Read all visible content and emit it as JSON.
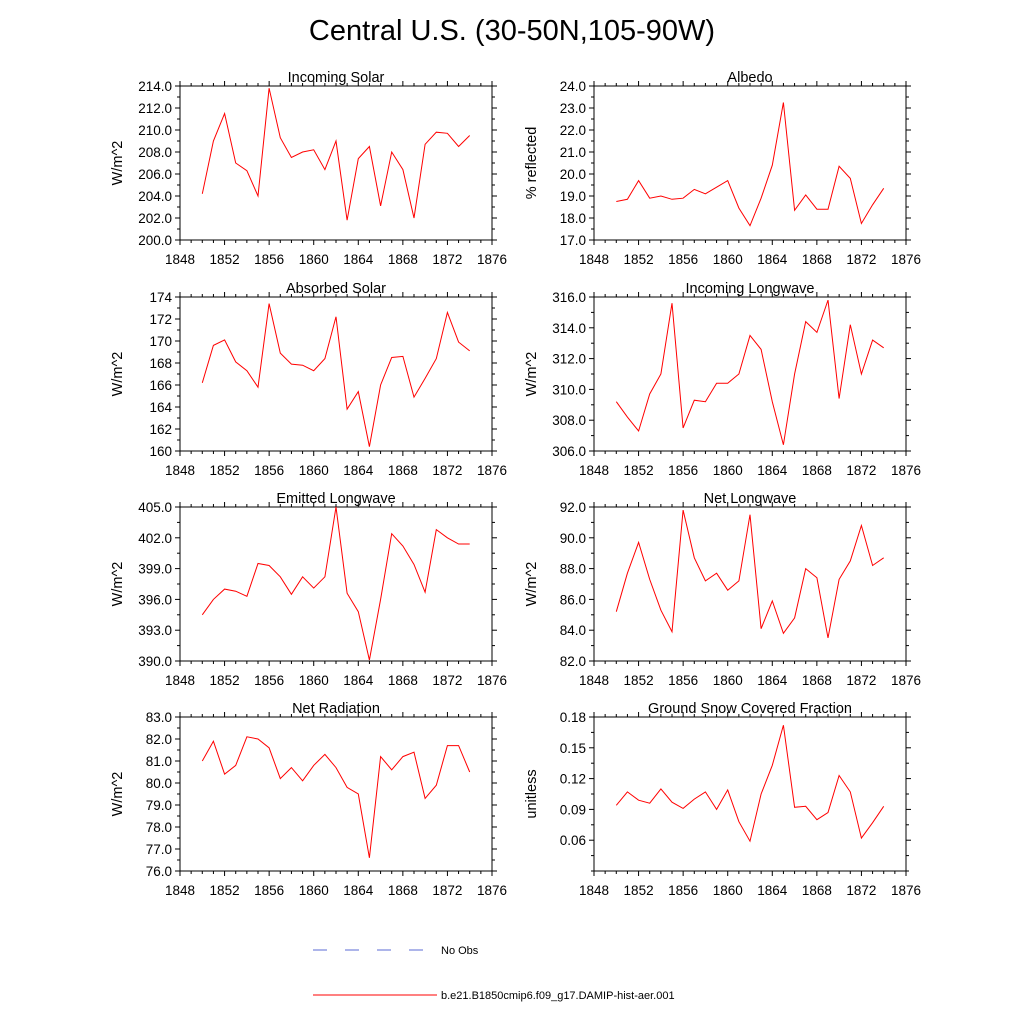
{
  "title": "Central U.S. (30-50N,105-90W)",
  "legend": [
    {
      "label": "No Obs",
      "color": "#5b6bd6",
      "dash": "dashed"
    },
    {
      "label": "b.e21.B1850cmip6.f09_g17.DAMIP-hist-aer.001",
      "color": "#ff0000",
      "dash": "solid"
    }
  ],
  "chart_data": [
    {
      "type": "line",
      "title": "Incoming Solar",
      "ylabel": "W/m^2",
      "xlim": [
        1848,
        1876
      ],
      "xticks": [
        "1848",
        "1852",
        "1856",
        "1860",
        "1864",
        "1868",
        "1872",
        "1876"
      ],
      "ylim": [
        200,
        214
      ],
      "yticks": [
        "200.0",
        "202.0",
        "204.0",
        "206.0",
        "208.0",
        "210.0",
        "212.0",
        "214.0"
      ],
      "series": [
        {
          "color": "#ff0000",
          "x": [
            1850,
            1851,
            1852,
            1853,
            1854,
            1855,
            1856,
            1857,
            1858,
            1859,
            1860,
            1861,
            1862,
            1863,
            1864,
            1865,
            1866,
            1867,
            1868,
            1869,
            1870,
            1871,
            1872,
            1873,
            1874
          ],
          "values": [
            204.2,
            209.0,
            211.5,
            207.0,
            206.3,
            204.0,
            213.8,
            209.3,
            207.5,
            208.0,
            208.2,
            206.4,
            209.0,
            201.8,
            207.4,
            208.5,
            203.1,
            208.0,
            206.4,
            202.0,
            208.7,
            209.8,
            209.7,
            208.5,
            209.5
          ]
        }
      ]
    },
    {
      "type": "line",
      "title": "Albedo",
      "ylabel": "% reflected",
      "xlim": [
        1848,
        1876
      ],
      "xticks": [
        "1848",
        "1852",
        "1856",
        "1860",
        "1864",
        "1868",
        "1872",
        "1876"
      ],
      "ylim": [
        17,
        24
      ],
      "yticks": [
        "17.0",
        "18.0",
        "19.0",
        "20.0",
        "21.0",
        "22.0",
        "23.0",
        "24.0"
      ],
      "series": [
        {
          "color": "#ff0000",
          "x": [
            1850,
            1851,
            1852,
            1853,
            1854,
            1855,
            1856,
            1857,
            1858,
            1859,
            1860,
            1861,
            1862,
            1863,
            1864,
            1865,
            1866,
            1867,
            1868,
            1869,
            1870,
            1871,
            1872,
            1873,
            1874
          ],
          "values": [
            18.75,
            18.85,
            19.7,
            18.9,
            19.0,
            18.85,
            18.9,
            19.3,
            19.1,
            19.4,
            19.7,
            18.45,
            17.65,
            18.9,
            20.4,
            23.25,
            18.35,
            19.05,
            18.4,
            18.4,
            20.35,
            19.8,
            17.75,
            18.6,
            19.35
          ]
        }
      ]
    },
    {
      "type": "line",
      "title": "Absorbed Solar",
      "ylabel": "W/m^2",
      "xlim": [
        1848,
        1876
      ],
      "xticks": [
        "1848",
        "1852",
        "1856",
        "1860",
        "1864",
        "1868",
        "1872",
        "1876"
      ],
      "ylim": [
        160,
        174
      ],
      "yticks": [
        "160",
        "162",
        "164",
        "166",
        "168",
        "170",
        "172",
        "174"
      ],
      "series": [
        {
          "color": "#ff0000",
          "x": [
            1850,
            1851,
            1852,
            1853,
            1854,
            1855,
            1856,
            1857,
            1858,
            1859,
            1860,
            1861,
            1862,
            1863,
            1864,
            1865,
            1866,
            1867,
            1868,
            1869,
            1870,
            1871,
            1872,
            1873,
            1874
          ],
          "values": [
            166.2,
            169.6,
            170.1,
            168.1,
            167.3,
            165.8,
            173.4,
            168.9,
            167.9,
            167.8,
            167.3,
            168.4,
            172.2,
            163.8,
            165.4,
            160.4,
            166.0,
            168.5,
            168.6,
            164.9,
            166.6,
            168.4,
            172.6,
            169.9,
            169.1
          ]
        }
      ]
    },
    {
      "type": "line",
      "title": "Incoming Longwave",
      "ylabel": "W/m^2",
      "xlim": [
        1848,
        1876
      ],
      "xticks": [
        "1848",
        "1852",
        "1856",
        "1860",
        "1864",
        "1868",
        "1872",
        "1876"
      ],
      "ylim": [
        306,
        316
      ],
      "yticks": [
        "306.0",
        "308.0",
        "310.0",
        "312.0",
        "314.0",
        "316.0"
      ],
      "series": [
        {
          "color": "#ff0000",
          "x": [
            1850,
            1851,
            1852,
            1853,
            1854,
            1855,
            1856,
            1857,
            1858,
            1859,
            1860,
            1861,
            1862,
            1863,
            1864,
            1865,
            1866,
            1867,
            1868,
            1869,
            1870,
            1871,
            1872,
            1873,
            1874
          ],
          "values": [
            309.2,
            308.2,
            307.3,
            309.7,
            311.0,
            315.6,
            307.5,
            309.3,
            309.2,
            310.4,
            310.4,
            311.0,
            313.5,
            312.6,
            309.2,
            306.4,
            311.0,
            314.4,
            313.7,
            315.8,
            309.4,
            314.2,
            311.0,
            313.2,
            312.7
          ]
        }
      ]
    },
    {
      "type": "line",
      "title": "Emitted Longwave",
      "ylabel": "W/m^2",
      "xlim": [
        1848,
        1876
      ],
      "xticks": [
        "1848",
        "1852",
        "1856",
        "1860",
        "1864",
        "1868",
        "1872",
        "1876"
      ],
      "ylim": [
        390,
        405
      ],
      "yticks": [
        "390.0",
        "393.0",
        "396.0",
        "399.0",
        "402.0",
        "405.0"
      ],
      "series": [
        {
          "color": "#ff0000",
          "x": [
            1850,
            1851,
            1852,
            1853,
            1854,
            1855,
            1856,
            1857,
            1858,
            1859,
            1860,
            1861,
            1862,
            1863,
            1864,
            1865,
            1866,
            1867,
            1868,
            1869,
            1870,
            1871,
            1872,
            1873,
            1874
          ],
          "values": [
            394.5,
            396.0,
            397.0,
            396.8,
            396.3,
            399.5,
            399.3,
            398.2,
            396.5,
            398.2,
            397.1,
            398.2,
            405.0,
            396.6,
            394.8,
            390.1,
            396.0,
            402.4,
            401.2,
            399.4,
            396.7,
            402.8,
            402.0,
            401.4,
            401.4
          ]
        }
      ]
    },
    {
      "type": "line",
      "title": "Net Longwave",
      "ylabel": "W/m^2",
      "xlim": [
        1848,
        1876
      ],
      "xticks": [
        "1848",
        "1852",
        "1856",
        "1860",
        "1864",
        "1868",
        "1872",
        "1876"
      ],
      "ylim": [
        82,
        92
      ],
      "yticks": [
        "82.0",
        "84.0",
        "86.0",
        "88.0",
        "90.0",
        "92.0"
      ],
      "series": [
        {
          "color": "#ff0000",
          "x": [
            1850,
            1851,
            1852,
            1853,
            1854,
            1855,
            1856,
            1857,
            1858,
            1859,
            1860,
            1861,
            1862,
            1863,
            1864,
            1865,
            1866,
            1867,
            1868,
            1869,
            1870,
            1871,
            1872,
            1873,
            1874
          ],
          "values": [
            85.2,
            87.7,
            89.7,
            87.3,
            85.3,
            83.9,
            91.8,
            88.7,
            87.2,
            87.7,
            86.6,
            87.2,
            91.5,
            84.1,
            85.9,
            83.8,
            84.8,
            88.0,
            87.4,
            83.5,
            87.3,
            88.5,
            90.8,
            88.2,
            88.7
          ]
        }
      ]
    },
    {
      "type": "line",
      "title": "Net Radiation",
      "ylabel": "W/m^2",
      "xlim": [
        1848,
        1876
      ],
      "xticks": [
        "1848",
        "1852",
        "1856",
        "1860",
        "1864",
        "1868",
        "1872",
        "1876"
      ],
      "ylim": [
        76,
        83
      ],
      "yticks": [
        "76.0",
        "77.0",
        "78.0",
        "79.0",
        "80.0",
        "81.0",
        "82.0",
        "83.0"
      ],
      "series": [
        {
          "color": "#ff0000",
          "x": [
            1850,
            1851,
            1852,
            1853,
            1854,
            1855,
            1856,
            1857,
            1858,
            1859,
            1860,
            1861,
            1862,
            1863,
            1864,
            1865,
            1866,
            1867,
            1868,
            1869,
            1870,
            1871,
            1872,
            1873,
            1874
          ],
          "values": [
            81.0,
            81.9,
            80.4,
            80.8,
            82.1,
            82.0,
            81.6,
            80.2,
            80.7,
            80.1,
            80.8,
            81.3,
            80.7,
            79.8,
            79.5,
            76.6,
            81.2,
            80.6,
            81.2,
            81.4,
            79.3,
            79.9,
            81.7,
            81.7,
            80.5
          ]
        }
      ]
    },
    {
      "type": "line",
      "title": "Ground Snow Covered Fraction",
      "ylabel": "unitless",
      "xlim": [
        1848,
        1876
      ],
      "xticks": [
        "1848",
        "1852",
        "1856",
        "1860",
        "1864",
        "1868",
        "1872",
        "1876"
      ],
      "ylim": [
        0.03,
        0.18
      ],
      "yticks": [
        "0.06",
        "0.09",
        "0.12",
        "0.15",
        "0.18"
      ],
      "series": [
        {
          "color": "#ff0000",
          "x": [
            1850,
            1851,
            1852,
            1853,
            1854,
            1855,
            1856,
            1857,
            1858,
            1859,
            1860,
            1861,
            1862,
            1863,
            1864,
            1865,
            1866,
            1867,
            1868,
            1869,
            1870,
            1871,
            1872,
            1873,
            1874
          ],
          "values": [
            0.094,
            0.107,
            0.099,
            0.096,
            0.11,
            0.097,
            0.091,
            0.1,
            0.107,
            0.09,
            0.109,
            0.078,
            0.059,
            0.105,
            0.133,
            0.172,
            0.092,
            0.093,
            0.08,
            0.087,
            0.123,
            0.107,
            0.062,
            0.077,
            0.093
          ]
        }
      ]
    }
  ]
}
